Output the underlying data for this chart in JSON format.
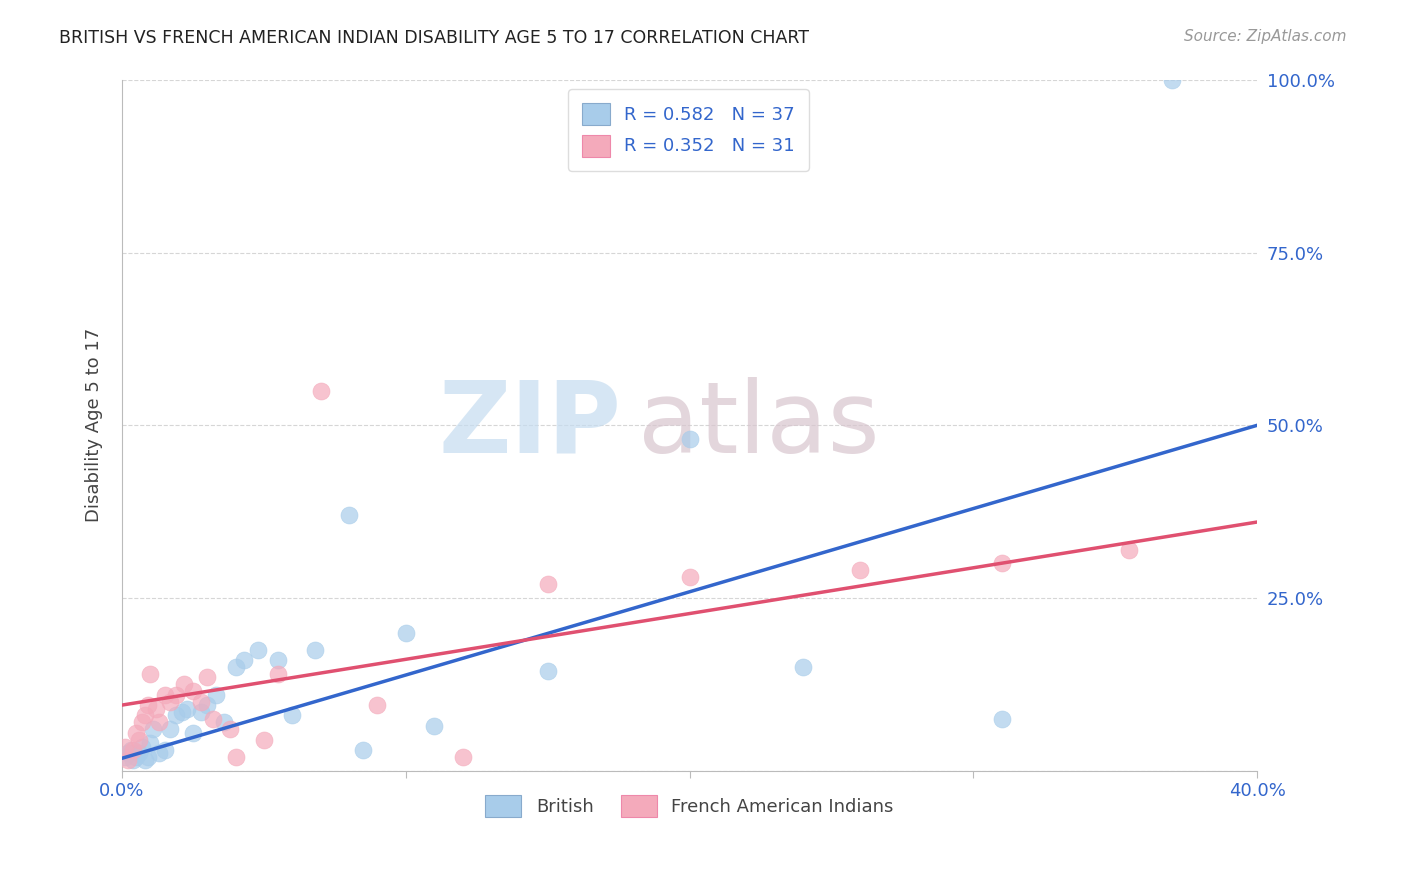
{
  "title": "BRITISH VS FRENCH AMERICAN INDIAN DISABILITY AGE 5 TO 17 CORRELATION CHART",
  "source": "Source: ZipAtlas.com",
  "ylabel": "Disability Age 5 to 17",
  "xmin": 0.0,
  "xmax": 0.4,
  "ymin": 0.0,
  "ymax": 1.0,
  "xtick_positions": [
    0.0,
    0.1,
    0.2,
    0.3,
    0.4
  ],
  "xtick_labels": [
    "0.0%",
    "",
    "",
    "",
    "40.0%"
  ],
  "ytick_positions": [
    0.0,
    0.25,
    0.5,
    0.75,
    1.0
  ],
  "ytick_labels": [
    "",
    "25.0%",
    "50.0%",
    "75.0%",
    "100.0%"
  ],
  "british_color": "#A8CCEA",
  "french_color": "#F4AABB",
  "british_line_color": "#3366CC",
  "french_line_color": "#E05070",
  "R_british": "0.582",
  "N_british": "37",
  "R_french": "0.352",
  "N_french": "31",
  "british_x": [
    0.001,
    0.002,
    0.003,
    0.004,
    0.005,
    0.006,
    0.007,
    0.008,
    0.009,
    0.01,
    0.011,
    0.013,
    0.015,
    0.017,
    0.019,
    0.021,
    0.023,
    0.025,
    0.028,
    0.03,
    0.033,
    0.036,
    0.04,
    0.043,
    0.048,
    0.055,
    0.06,
    0.068,
    0.08,
    0.085,
    0.1,
    0.11,
    0.15,
    0.2,
    0.24,
    0.31,
    0.37
  ],
  "british_y": [
    0.02,
    0.025,
    0.03,
    0.015,
    0.02,
    0.025,
    0.035,
    0.015,
    0.02,
    0.04,
    0.06,
    0.025,
    0.03,
    0.06,
    0.08,
    0.085,
    0.09,
    0.055,
    0.085,
    0.095,
    0.11,
    0.07,
    0.15,
    0.16,
    0.175,
    0.16,
    0.08,
    0.175,
    0.37,
    0.03,
    0.2,
    0.065,
    0.145,
    0.48,
    0.15,
    0.075,
    1.0
  ],
  "french_x": [
    0.001,
    0.002,
    0.004,
    0.005,
    0.006,
    0.007,
    0.008,
    0.009,
    0.01,
    0.012,
    0.013,
    0.015,
    0.017,
    0.019,
    0.022,
    0.025,
    0.028,
    0.03,
    0.032,
    0.038,
    0.04,
    0.05,
    0.055,
    0.07,
    0.09,
    0.12,
    0.15,
    0.2,
    0.26,
    0.31,
    0.355
  ],
  "french_y": [
    0.035,
    0.015,
    0.03,
    0.055,
    0.045,
    0.07,
    0.08,
    0.095,
    0.14,
    0.09,
    0.07,
    0.11,
    0.1,
    0.11,
    0.125,
    0.115,
    0.1,
    0.135,
    0.075,
    0.06,
    0.02,
    0.045,
    0.14,
    0.55,
    0.095,
    0.02,
    0.27,
    0.28,
    0.29,
    0.3,
    0.32
  ],
  "background_color": "#FFFFFF",
  "grid_color": "#CCCCCC",
  "british_trend_x0": 0.0,
  "british_trend_y0": 0.018,
  "british_trend_x1": 0.4,
  "british_trend_y1": 0.5,
  "french_trend_x0": 0.0,
  "french_trend_y0": 0.095,
  "french_trend_x1": 0.4,
  "french_trend_y1": 0.36
}
